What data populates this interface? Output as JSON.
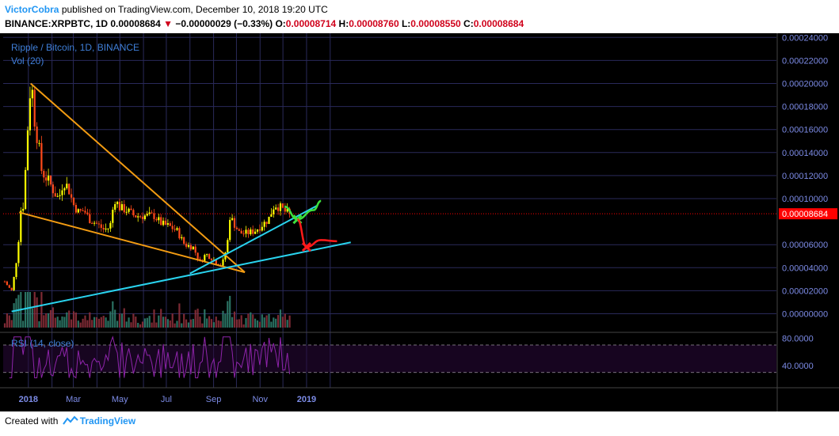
{
  "header": {
    "author": "VictorCobra",
    "published": "published on TradingView.com, December 10, 2018 19:20 UTC",
    "symbol": "BINANCE:XRPBTC, 1D",
    "last": "0.00008684",
    "change_arrow": "▼",
    "change": "−0.00000029 (−0.33%)",
    "o_label": "O:",
    "o_value": "0.00008714",
    "h_label": "H:",
    "h_value": "0.00008760",
    "l_label": "L:",
    "l_value": "0.00008550",
    "c_label": "C:",
    "c_value": "0.00008684"
  },
  "legend": {
    "title": "Ripple / Bitcoin, 1D, BINANCE",
    "vol": "Vol (20)",
    "rsi": "RSI (14, close)"
  },
  "footer": {
    "created_with": "Created with",
    "brand": "TradingView",
    "brand_icon": "tradingview-logo-icon"
  },
  "colors": {
    "background": "#000000",
    "grid": "#2a2a5a",
    "up": "#ffff00",
    "down": "#ff4a1a",
    "trendline_orange": "#f39c12",
    "trendline_cyan": "#29d3ee",
    "projection_green": "#3de03d",
    "projection_red": "#ff1a1a",
    "price_tag": "#ff0000",
    "rsi": "#8e24aa"
  },
  "chart_data": {
    "type": "candlestick",
    "title": "Ripple / Bitcoin, 1D, BINANCE",
    "price_axis": {
      "ticks": [
        "0.00024000",
        "0.00022000",
        "0.00020000",
        "0.00018000",
        "0.00016000",
        "0.00014000",
        "0.00012000",
        "0.00010000",
        "0.00008684",
        "0.00006000",
        "0.00004000",
        "0.00002000",
        "0.00000000"
      ],
      "current_price": "0.00008684",
      "ylim": [
        0,
        0.00024
      ]
    },
    "rsi_axis": {
      "ticks": [
        "80.0000",
        "40.0000"
      ],
      "bands": [
        70,
        30
      ]
    },
    "x_axis": {
      "ticks": [
        "2018",
        "Mar",
        "May",
        "Jul",
        "Sep",
        "Nov",
        "2019"
      ]
    },
    "price_path": [
      [
        "2017-12-01",
        2.8e-05
      ],
      [
        "2017-12-05",
        2.4e-05
      ],
      [
        "2017-12-10",
        2e-05
      ],
      [
        "2017-12-14",
        3.5e-05
      ],
      [
        "2017-12-18",
        5.5e-05
      ],
      [
        "2017-12-22",
        9e-05
      ],
      [
        "2017-12-26",
        9.5e-05
      ],
      [
        "2017-12-30",
        0.00015
      ],
      [
        "2018-01-04",
        0.0002
      ],
      [
        "2018-01-07",
        0.00019
      ],
      [
        "2018-01-10",
        0.00016
      ],
      [
        "2018-01-14",
        0.00015
      ],
      [
        "2018-01-18",
        0.000125
      ],
      [
        "2018-01-22",
        0.00012
      ],
      [
        "2018-01-28",
        0.000115
      ],
      [
        "2018-02-04",
        0.000105
      ],
      [
        "2018-02-10",
        0.0001
      ],
      [
        "2018-02-16",
        0.000115
      ],
      [
        "2018-02-22",
        0.00011
      ],
      [
        "2018-03-01",
        9.5e-05
      ],
      [
        "2018-03-08",
        8.8e-05
      ],
      [
        "2018-03-15",
        9e-05
      ],
      [
        "2018-03-22",
        8.2e-05
      ],
      [
        "2018-04-01",
        7.8e-05
      ],
      [
        "2018-04-10",
        7.3e-05
      ],
      [
        "2018-04-18",
        7.5e-05
      ],
      [
        "2018-04-24",
        0.0001
      ],
      [
        "2018-05-01",
        9.2e-05
      ],
      [
        "2018-05-10",
        9e-05
      ],
      [
        "2018-05-20",
        8.5e-05
      ],
      [
        "2018-06-01",
        8.5e-05
      ],
      [
        "2018-06-15",
        8.5e-05
      ],
      [
        "2018-06-25",
        7.8e-05
      ],
      [
        "2018-07-05",
        7.6e-05
      ],
      [
        "2018-07-15",
        7.2e-05
      ],
      [
        "2018-07-25",
        6e-05
      ],
      [
        "2018-08-05",
        5.8e-05
      ],
      [
        "2018-08-14",
        4.5e-05
      ],
      [
        "2018-08-22",
        5.2e-05
      ],
      [
        "2018-08-30",
        4.8e-05
      ],
      [
        "2018-09-05",
        4.4e-05
      ],
      [
        "2018-09-12",
        4.2e-05
      ],
      [
        "2018-09-19",
        6e-05
      ],
      [
        "2018-09-22",
        8.5e-05
      ],
      [
        "2018-09-28",
        7.8e-05
      ],
      [
        "2018-10-05",
        7e-05
      ],
      [
        "2018-10-15",
        7e-05
      ],
      [
        "2018-10-25",
        7.2e-05
      ],
      [
        "2018-11-05",
        7.8e-05
      ],
      [
        "2018-11-12",
        8.2e-05
      ],
      [
        "2018-11-20",
        9.5e-05
      ],
      [
        "2018-11-28",
        9.2e-05
      ],
      [
        "2018-12-05",
        8.8e-05
      ],
      [
        "2018-12-10",
        8.684e-05
      ]
    ],
    "annotations": [
      {
        "kind": "trendline",
        "color": "orange",
        "from": [
          "2018-01-04",
          0.0002
        ],
        "to": [
          "2018-10-12",
          3.6e-05
        ]
      },
      {
        "kind": "trendline",
        "color": "orange",
        "from": [
          "2017-12-20",
          8.8e-05
        ],
        "to": [
          "2018-10-12",
          3.6e-05
        ]
      },
      {
        "kind": "trendline",
        "color": "cyan",
        "from": [
          "2017-12-10",
          2e-06
        ],
        "to": [
          "2019-02-28",
          6.2e-05
        ]
      },
      {
        "kind": "trendline",
        "color": "cyan",
        "from": [
          "2018-08-01",
          3.5e-05
        ],
        "to": [
          "2019-01-15",
          9.4e-05
        ]
      },
      {
        "kind": "projection",
        "color": "green",
        "path": [
          [
            "2018-12-03",
            9.3e-05
          ],
          [
            "2018-12-20",
            8.2e-05
          ],
          [
            "2019-01-10",
            9e-05
          ],
          [
            "2019-01-20",
            9.8e-05
          ]
        ]
      },
      {
        "kind": "projection",
        "color": "red",
        "path": [
          [
            "2018-12-20",
            8.2e-05
          ],
          [
            "2019-01-01",
            5.8e-05
          ],
          [
            "2019-01-20",
            6.4e-05
          ],
          [
            "2019-02-10",
            6.3e-05
          ]
        ]
      }
    ]
  }
}
